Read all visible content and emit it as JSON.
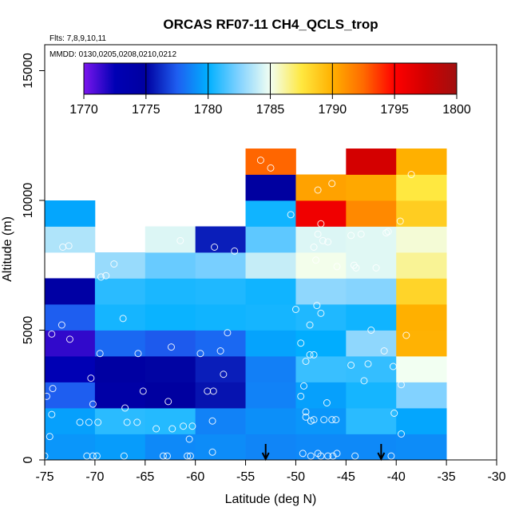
{
  "chart_data": {
    "type": "heatmap",
    "title": "ORCAS RF07-11 CH4_QCLS_trop",
    "note_flights": "Flts: 7,8,9,10,11",
    "note_dates": "MMDD: 0130,0205,0208,0210,0212",
    "xlabel": "Latitude (deg N)",
    "ylabel": "Altitude (m)",
    "xlim": [
      -75,
      -30
    ],
    "ylim": [
      0,
      16000
    ],
    "x_ticks": [
      -75,
      -70,
      -65,
      -60,
      -55,
      -50,
      -45,
      -40,
      -35,
      -30
    ],
    "x_tick_labels": [
      "-75",
      "-70",
      "-65",
      "-60",
      "-55",
      "-50",
      "-45",
      "-40",
      "-35",
      "-30"
    ],
    "y_ticks": [
      0,
      5000,
      10000,
      15000
    ],
    "y_tick_labels": [
      "0",
      "5000",
      "10000",
      "15000"
    ],
    "colorbar": {
      "min": 1770,
      "max": 1800,
      "ticks": [
        1770,
        1775,
        1780,
        1785,
        1790,
        1795,
        1800
      ],
      "tick_labels": [
        "1770",
        "1775",
        "1780",
        "1785",
        "1790",
        "1795",
        "1800"
      ],
      "stops": [
        {
          "v": 1770,
          "c": "#7b16ee"
        },
        {
          "v": 1772.5,
          "c": "#0000b4"
        },
        {
          "v": 1775,
          "c": "#0000a0"
        },
        {
          "v": 1777.5,
          "c": "#1e5ef0"
        },
        {
          "v": 1780,
          "c": "#00b0ff"
        },
        {
          "v": 1782.5,
          "c": "#82d2ff"
        },
        {
          "v": 1785,
          "c": "#f2fff2"
        },
        {
          "v": 1787.5,
          "c": "#ffe840"
        },
        {
          "v": 1790,
          "c": "#ffb000"
        },
        {
          "v": 1792.5,
          "c": "#ff6a00"
        },
        {
          "v": 1795,
          "c": "#ff0000"
        },
        {
          "v": 1797.5,
          "c": "#d00000"
        },
        {
          "v": 1800,
          "c": "#a01010"
        }
      ]
    },
    "grid": {
      "lat_start": -75,
      "lat_step": 5,
      "alt_start": 0,
      "alt_step": 1000,
      "columns": [
        [
          1779.2,
          1779.5,
          1777.5,
          1772.5,
          1771.5,
          1777.5,
          1774.5,
          null,
          1783.5,
          1779.7
        ],
        [
          1779.4,
          1780.8,
          1774.3,
          1774.8,
          1777.8,
          1780.4,
          1780.8,
          1783.0,
          null,
          null
        ],
        [
          1778.8,
          1780.7,
          1775.0,
          1775.1,
          1777.4,
          1780.2,
          1780.5,
          1782.0,
          1784.5,
          null
        ],
        [
          1778.9,
          1778.6,
          1775.5,
          1775.8,
          1777.8,
          1780.3,
          1780.6,
          1782.3,
          1775.8,
          null
        ],
        [
          1778.7,
          1779.0,
          1778.6,
          1778.5,
          1779.6,
          1780.4,
          1780.3,
          1784.0,
          1781.8,
          1780.3,
          1775.0,
          1792.6
        ],
        [
          1778.8,
          1779.2,
          1779.5,
          1781.1,
          1779.9,
          1780.6,
          1782.8,
          1785.1,
          1784.5,
          1795.8,
          1790.5,
          null
        ],
        [
          1778.8,
          1780.8,
          1780.4,
          1781.0,
          1782.8,
          1780.3,
          1782.6,
          1784.6,
          1784.6,
          1791.4,
          1790.3,
          1797.3
        ],
        [
          1778.9,
          1779.7,
          1782.5,
          1785.0,
          1789.9,
          1790.0,
          1788.4,
          1786.3,
          1785.4,
          1788.7,
          1787.5,
          1790.0
        ]
      ]
    },
    "observations": [
      [
        -75,
        150
      ],
      [
        -74.5,
        900
      ],
      [
        -74.3,
        1750
      ],
      [
        -74.8,
        2450
      ],
      [
        -74.2,
        2750
      ],
      [
        -74.3,
        4850
      ],
      [
        -73.3,
        5200
      ],
      [
        -72.5,
        4650
      ],
      [
        -73.8,
        7250
      ],
      [
        -73.2,
        8200
      ],
      [
        -72.6,
        8250
      ],
      [
        -70.8,
        150
      ],
      [
        -70.2,
        150
      ],
      [
        -69.8,
        150
      ],
      [
        -71.5,
        1450
      ],
      [
        -70.6,
        1450
      ],
      [
        -69.7,
        1450
      ],
      [
        -70.2,
        2150
      ],
      [
        -70.4,
        3150
      ],
      [
        -69.5,
        4100
      ],
      [
        -69.4,
        7050
      ],
      [
        -68.9,
        7100
      ],
      [
        -68.1,
        7550
      ],
      [
        -67.1,
        150
      ],
      [
        -66.8,
        1450
      ],
      [
        -65.8,
        1450
      ],
      [
        -67,
        2000
      ],
      [
        -65.2,
        2650
      ],
      [
        -67.2,
        5450
      ],
      [
        -65.7,
        4100
      ],
      [
        -63.2,
        150
      ],
      [
        -62.8,
        150
      ],
      [
        -63.9,
        1200
      ],
      [
        -62.3,
        1200
      ],
      [
        -62.7,
        2250
      ],
      [
        -62.4,
        4350
      ],
      [
        -61.5,
        8450
      ],
      [
        -60.8,
        150
      ],
      [
        -60.5,
        150
      ],
      [
        -60.6,
        800
      ],
      [
        -61.2,
        1300
      ],
      [
        -59.5,
        4100
      ],
      [
        -60.3,
        1300
      ],
      [
        -58.3,
        300
      ],
      [
        -58.3,
        1500
      ],
      [
        -58.2,
        2650
      ],
      [
        -57.2,
        3300
      ],
      [
        -57.5,
        4200
      ],
      [
        -58.8,
        2650
      ],
      [
        -58.1,
        8200
      ],
      [
        -56.8,
        4900
      ],
      [
        -56.1,
        8050
      ],
      [
        -53.5,
        11550
      ],
      [
        -52.5,
        11250
      ],
      [
        -50.5,
        9450
      ],
      [
        -50,
        5800
      ],
      [
        -49.5,
        4500
      ],
      [
        -48.6,
        4050
      ],
      [
        -48.2,
        4050
      ],
      [
        -48.6,
        5200
      ],
      [
        -47.9,
        5950
      ],
      [
        -47.5,
        5650
      ],
      [
        -48,
        7700
      ],
      [
        -47.3,
        8450
      ],
      [
        -47.8,
        8700
      ],
      [
        -46.8,
        8400
      ],
      [
        -48.2,
        8200
      ],
      [
        -47.5,
        9100
      ],
      [
        -47.8,
        10400
      ],
      [
        -46.4,
        10650
      ],
      [
        -49.5,
        2450
      ],
      [
        -49.2,
        2850
      ],
      [
        -49,
        3800
      ],
      [
        -49,
        1850
      ],
      [
        -49,
        1650
      ],
      [
        -48.2,
        1550
      ],
      [
        -48.5,
        1500
      ],
      [
        -47.2,
        1550
      ],
      [
        -46.4,
        1550
      ],
      [
        -46,
        1550
      ],
      [
        -46.9,
        2200
      ],
      [
        -49.3,
        250
      ],
      [
        -48.5,
        150
      ],
      [
        -47.8,
        250
      ],
      [
        -47.5,
        150
      ],
      [
        -46.8,
        150
      ],
      [
        -46.3,
        150
      ],
      [
        -45.9,
        250
      ],
      [
        -44.5,
        8650
      ],
      [
        -43.5,
        8700
      ],
      [
        -45.9,
        7450
      ],
      [
        -44.5,
        3650
      ],
      [
        -43.2,
        3050
      ],
      [
        -44.1,
        150
      ],
      [
        -42.5,
        5000
      ],
      [
        -41.2,
        4200
      ],
      [
        -40.5,
        150
      ],
      [
        -40.2,
        1800
      ],
      [
        -39.5,
        1000
      ],
      [
        -39.5,
        2900
      ],
      [
        -39,
        4800
      ],
      [
        -41,
        8750
      ],
      [
        -40.8,
        8800
      ],
      [
        -42,
        7400
      ],
      [
        -39.6,
        9200
      ],
      [
        -38.5,
        11000
      ],
      [
        -44,
        7400
      ],
      [
        -44.2,
        7500
      ],
      [
        -42.8,
        3700
      ],
      [
        -40.3,
        3600
      ]
    ],
    "arrows": [
      -53,
      -41.5
    ]
  }
}
